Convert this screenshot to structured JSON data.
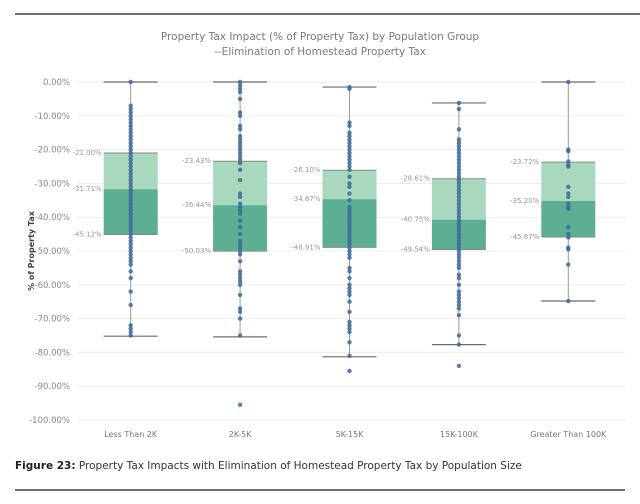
{
  "page": {
    "caption_prefix": "Figure 23:",
    "caption_text": " Property Tax Impacts with Elimination of Homestead Property Tax by Population Size"
  },
  "colors": {
    "upper_box": "#a8d8bd",
    "lower_box": "#5daf94",
    "points": "#3d6a9a",
    "whisker": "#6b6b6b",
    "grid": "#ececec"
  },
  "chart_data": {
    "type": "boxplot",
    "title": "Property Tax Impact (% of Property Tax) by Population Group",
    "subtitle": "--Elimination of Homestead Property Tax",
    "xlabel": "",
    "ylabel": "% of Property Tax",
    "ylim": [
      -100,
      0
    ],
    "yticks": [
      0,
      -10,
      -20,
      -30,
      -40,
      -50,
      -60,
      -70,
      -80,
      -90,
      -100
    ],
    "ytick_labels": [
      "0.00%",
      "-10.00%",
      "-20.00%",
      "-30.00%",
      "-40.00%",
      "-50.00%",
      "-60.00%",
      "-70.00%",
      "-80.00%",
      "-90.00%",
      "-100.00%"
    ],
    "grid": true,
    "categories": [
      "Less Than 2K",
      "2K-5K",
      "5K-15K",
      "15K-100K",
      "Greater Than 100K"
    ],
    "boxes": [
      {
        "name": "Less Than 2K",
        "q1": -21.0,
        "median": -31.71,
        "q3": -45.12,
        "q1_label": "-21.00%",
        "median_label": "-31.71%",
        "q3_label": "-45.12%",
        "whisker_high": 0,
        "whisker_low": -75.2,
        "points": [
          0,
          -7,
          -8,
          -9,
          -10,
          -11,
          -12,
          -13,
          -14,
          -15,
          -16,
          -17,
          -18,
          -19,
          -20,
          -21,
          -22,
          -23,
          -24,
          -25,
          -26,
          -27,
          -28,
          -29,
          -30,
          -31,
          -32,
          -33,
          -34,
          -35,
          -36,
          -37,
          -38,
          -39,
          -40,
          -41,
          -42,
          -43,
          -44,
          -45,
          -46,
          -47,
          -48,
          -49,
          -50,
          -51,
          -52,
          -53,
          -54,
          -56,
          -58,
          -62,
          -66,
          -72,
          -73,
          -74,
          -75
        ]
      },
      {
        "name": "2K-5K",
        "q1": -23.43,
        "median": -36.44,
        "q3": -50.03,
        "q1_label": "-23.43%",
        "median_label": "-36.44%",
        "q3_label": "-50.03%",
        "whisker_high": 0,
        "whisker_low": -75.4,
        "points": [
          0,
          -1,
          -2,
          -3,
          -5,
          -9,
          -10,
          -13,
          -14,
          -16,
          -17,
          -18,
          -19,
          -20,
          -21,
          -22,
          -23,
          -24,
          -26,
          -29,
          -33,
          -34,
          -36,
          -37,
          -38,
          -39,
          -41,
          -43,
          -45,
          -47,
          -48,
          -49,
          -50,
          -51,
          -53,
          -56,
          -57,
          -58,
          -59,
          -60,
          -63,
          -67,
          -68,
          -70,
          -75,
          -95.5
        ]
      },
      {
        "name": "5K-15K",
        "q1": -26.1,
        "median": -34.67,
        "q3": -48.91,
        "q1_label": "-26.10%",
        "median_label": "-34.67%",
        "q3_label": "-48.91%",
        "whisker_high": -1.5,
        "whisker_low": -81.3,
        "points": [
          -1.5,
          -2,
          -12,
          -13,
          -15,
          -16,
          -17,
          -18,
          -19,
          -20,
          -21,
          -22,
          -23,
          -24,
          -25,
          -26,
          -28,
          -30,
          -31,
          -33,
          -35,
          -37,
          -38,
          -39,
          -40,
          -41,
          -42,
          -43,
          -44,
          -45,
          -46,
          -47,
          -48,
          -49,
          -50,
          -51,
          -52,
          -55,
          -56,
          -58,
          -60,
          -61,
          -62,
          -63,
          -65,
          -68,
          -71,
          -72,
          -73,
          -74,
          -77,
          -81,
          -85.5
        ]
      },
      {
        "name": "15K-100K",
        "q1": -28.61,
        "median": -40.75,
        "q3": -49.54,
        "q1_label": "-28.61%",
        "median_label": "-40.75%",
        "q3_label": "-49.54%",
        "whisker_high": -6.2,
        "whisker_low": -77.7,
        "points": [
          -6.2,
          -8,
          -14,
          -17,
          -18,
          -19,
          -20,
          -21,
          -22,
          -23,
          -24,
          -25,
          -26,
          -27,
          -28,
          -29,
          -30,
          -31,
          -32,
          -33,
          -34,
          -35,
          -36,
          -37,
          -38,
          -39,
          -40,
          -41,
          -42,
          -43,
          -44,
          -45,
          -46,
          -47,
          -48,
          -49,
          -50,
          -51,
          -52,
          -53,
          -54,
          -55,
          -57,
          -58,
          -60,
          -62,
          -63,
          -64,
          -65,
          -66,
          -67,
          -69,
          -75,
          -77.7,
          -84
        ]
      },
      {
        "name": "Greater Than 100K",
        "q1": -23.72,
        "median": -35.2,
        "q3": -45.87,
        "q1_label": "-23.72%",
        "median_label": "-35.20%",
        "q3_label": "-45.87%",
        "whisker_high": 0,
        "whisker_low": -64.8,
        "points": [
          0,
          -20,
          -20.5,
          -23.5,
          -24.5,
          -25,
          -31,
          -33,
          -34,
          -36,
          -37,
          -37.5,
          -43,
          -45,
          -46,
          -49,
          -49.5,
          -54,
          -64.8
        ]
      }
    ]
  }
}
